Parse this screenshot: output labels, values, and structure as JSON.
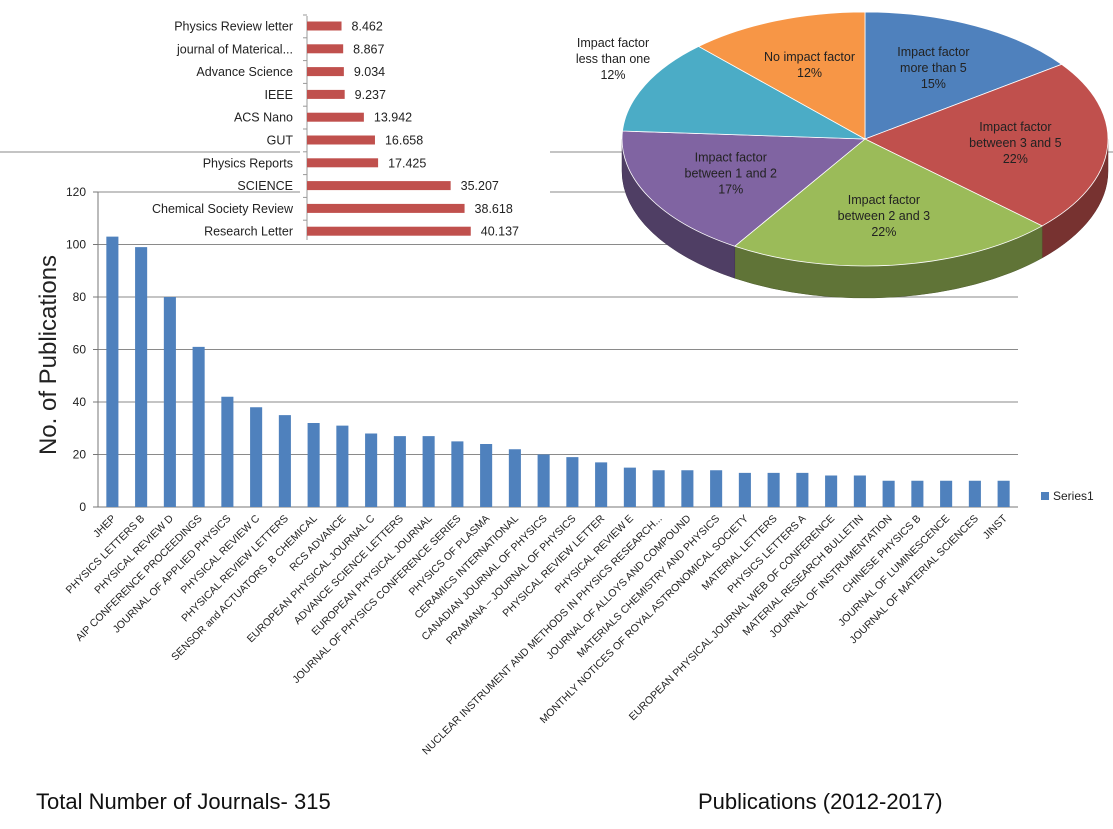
{
  "captions": {
    "left": "Total Number of Journals- 315",
    "right": "Publications (2012-2017)"
  },
  "chart_data": [
    {
      "type": "bar",
      "ylabel": "No. of Publications",
      "ylim": [
        0,
        120
      ],
      "yticks": [
        0,
        20,
        40,
        60,
        80,
        100,
        120
      ],
      "grid": true,
      "legend_position": "right",
      "color": "#4F81BD",
      "categories": [
        "JHEP",
        "PHYSICS LETTERS B",
        "PHYSICAL REVIEW D",
        "AIP CONFERENCE PROCEEDINGS",
        "JOURNAL OF APPLIED PHYSICS",
        "PHYSICAL REVIEW C",
        "PHYSICAL REVIEW LETTERS",
        "SENSOR and ACTUATORS ,B CHEMICAL",
        "RCS ADVANCE",
        "EUROPEAN PHYSICAL JOURNAL C",
        "ADVANCE SCIENCE LETTERS",
        "EUROPEAN PHYSICAL JOURNAL",
        "JOURNAL OF PHYSICS CONFERENCE SERIES",
        "PHYSICS OF PLASMA",
        "CERAMICS INTERNATIONAL",
        "CANADIAN JOURNAL OF PHYSICS",
        "PRAMANA – JOURNAL OF PHYSICS",
        "PHYSICAL REVIEW LETTER",
        "PHYSICAL REVIEW E",
        "NUCLEAR INSTRUMENT AND METHODS IN PHYSICS RESEARCH...",
        "JOURNAL OF ALLOYS AND COMPOUND",
        "MATERIALS CHEMISTRY AND PHYSICS",
        "MONTHLY NOTICES OF ROYAL ASTRONOMICAL SOCIETY",
        "MATERIAL LETTERS",
        "PHYSICS LETTERS A",
        "EUROPEAN PHYSICAL JOURNAL  WEB OF CONFERENCE",
        "MATERIAL RESEARCH BULLETIN",
        "JOURNAL OF INSTRUMENTATION",
        "CHINESE PHYSICS B",
        "JOURNAL OF LUMINESCENCE",
        "JOURNAL OF MATERIAL SCIENCES",
        "JINST"
      ],
      "series": [
        {
          "name": "Series1",
          "values": [
            103,
            99,
            80,
            61,
            42,
            38,
            35,
            32,
            31,
            28,
            27,
            27,
            25,
            24,
            22,
            20,
            19,
            17,
            15,
            14,
            14,
            14,
            13,
            13,
            13,
            12,
            12,
            10,
            10,
            10,
            10,
            10
          ]
        }
      ]
    },
    {
      "type": "bar",
      "orientation": "horizontal",
      "color": "#C0504D",
      "categories": [
        "Physics Review letter",
        "journal of Materical...",
        "Advance Science",
        "IEEE",
        "ACS Nano",
        "GUT",
        "Physics Reports",
        "SCIENCE",
        "Chemical Society Review",
        "Research Letter"
      ],
      "values": [
        8.462,
        8.867,
        9.034,
        9.237,
        13.942,
        16.658,
        17.425,
        35.207,
        38.618,
        40.137
      ],
      "value_labels": [
        "8.462",
        "8.867",
        "9.034",
        "9.237",
        "13.942",
        "16.658",
        "17.425",
        "35.207",
        "38.618",
        "40.137"
      ],
      "xlim": [
        0,
        50
      ]
    },
    {
      "type": "pie",
      "style": "3d",
      "slices": [
        {
          "label": "Impact factor more than 5",
          "lines": [
            "Impact factor",
            "more than 5"
          ],
          "value": 15,
          "pct": "15%",
          "color": "#4F81BD"
        },
        {
          "label": "Impact factor between 3 and 5",
          "lines": [
            "Impact factor",
            "between 3 and 5"
          ],
          "value": 22,
          "pct": "22%",
          "color": "#C0504D"
        },
        {
          "label": "Impact factor between 2 and 3",
          "lines": [
            "Impact factor",
            "between 2 and 3"
          ],
          "value": 22,
          "pct": "22%",
          "color": "#9BBB59"
        },
        {
          "label": "Impact factor between 1 and 2",
          "lines": [
            "Impact factor",
            "between 1 and 2"
          ],
          "value": 17,
          "pct": "17%",
          "color": "#8064A2"
        },
        {
          "label": "Impact factor less than one",
          "lines": [
            "Impact factor",
            "less than one"
          ],
          "value": 12,
          "pct": "12%",
          "color": "#4BACC6"
        },
        {
          "label": "No impact factor",
          "lines": [
            "No impact factor"
          ],
          "value": 12,
          "pct": "12%",
          "color": "#F79646"
        }
      ]
    }
  ]
}
